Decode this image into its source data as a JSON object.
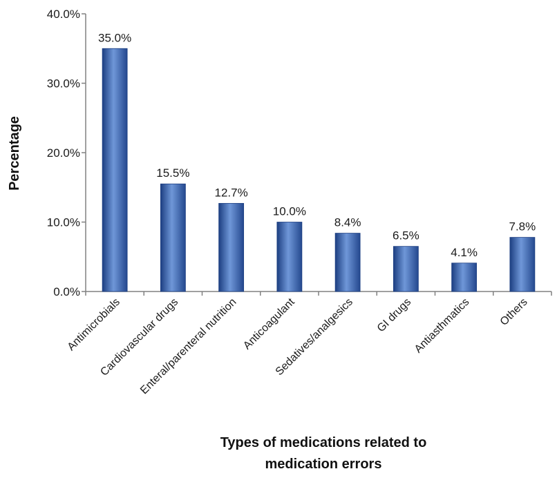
{
  "chart_data": {
    "type": "bar",
    "title": "",
    "xlabel_lines": [
      "Types of medications related to",
      "medication errors"
    ],
    "ylabel": "Percentage",
    "ylim": [
      0,
      40
    ],
    "yticks": [
      0,
      10,
      20,
      30,
      40
    ],
    "ytick_labels": [
      "0.0%",
      "10.0%",
      "20.0%",
      "30.0%",
      "40.0%"
    ],
    "categories": [
      "Antimicrobials",
      "Cardiovascular drugs",
      "Enteral/parenteral nutrition",
      "Anticoagulant",
      "Sedatives/analgesics",
      "GI drugs",
      "Antiasthmatics",
      "Others"
    ],
    "values": [
      35.0,
      15.5,
      12.7,
      10.0,
      8.4,
      6.5,
      4.1,
      7.8
    ],
    "data_labels": [
      "35.0%",
      "15.5%",
      "12.7%",
      "10.0%",
      "8.4%",
      "6.5%",
      "4.1%",
      "7.8%"
    ],
    "grid": false,
    "legend": "none",
    "colors": {
      "bar_light": "#6f97d8",
      "bar_mid": "#3a67b6",
      "bar_dark": "#1d3f82",
      "axis": "#808080"
    }
  }
}
